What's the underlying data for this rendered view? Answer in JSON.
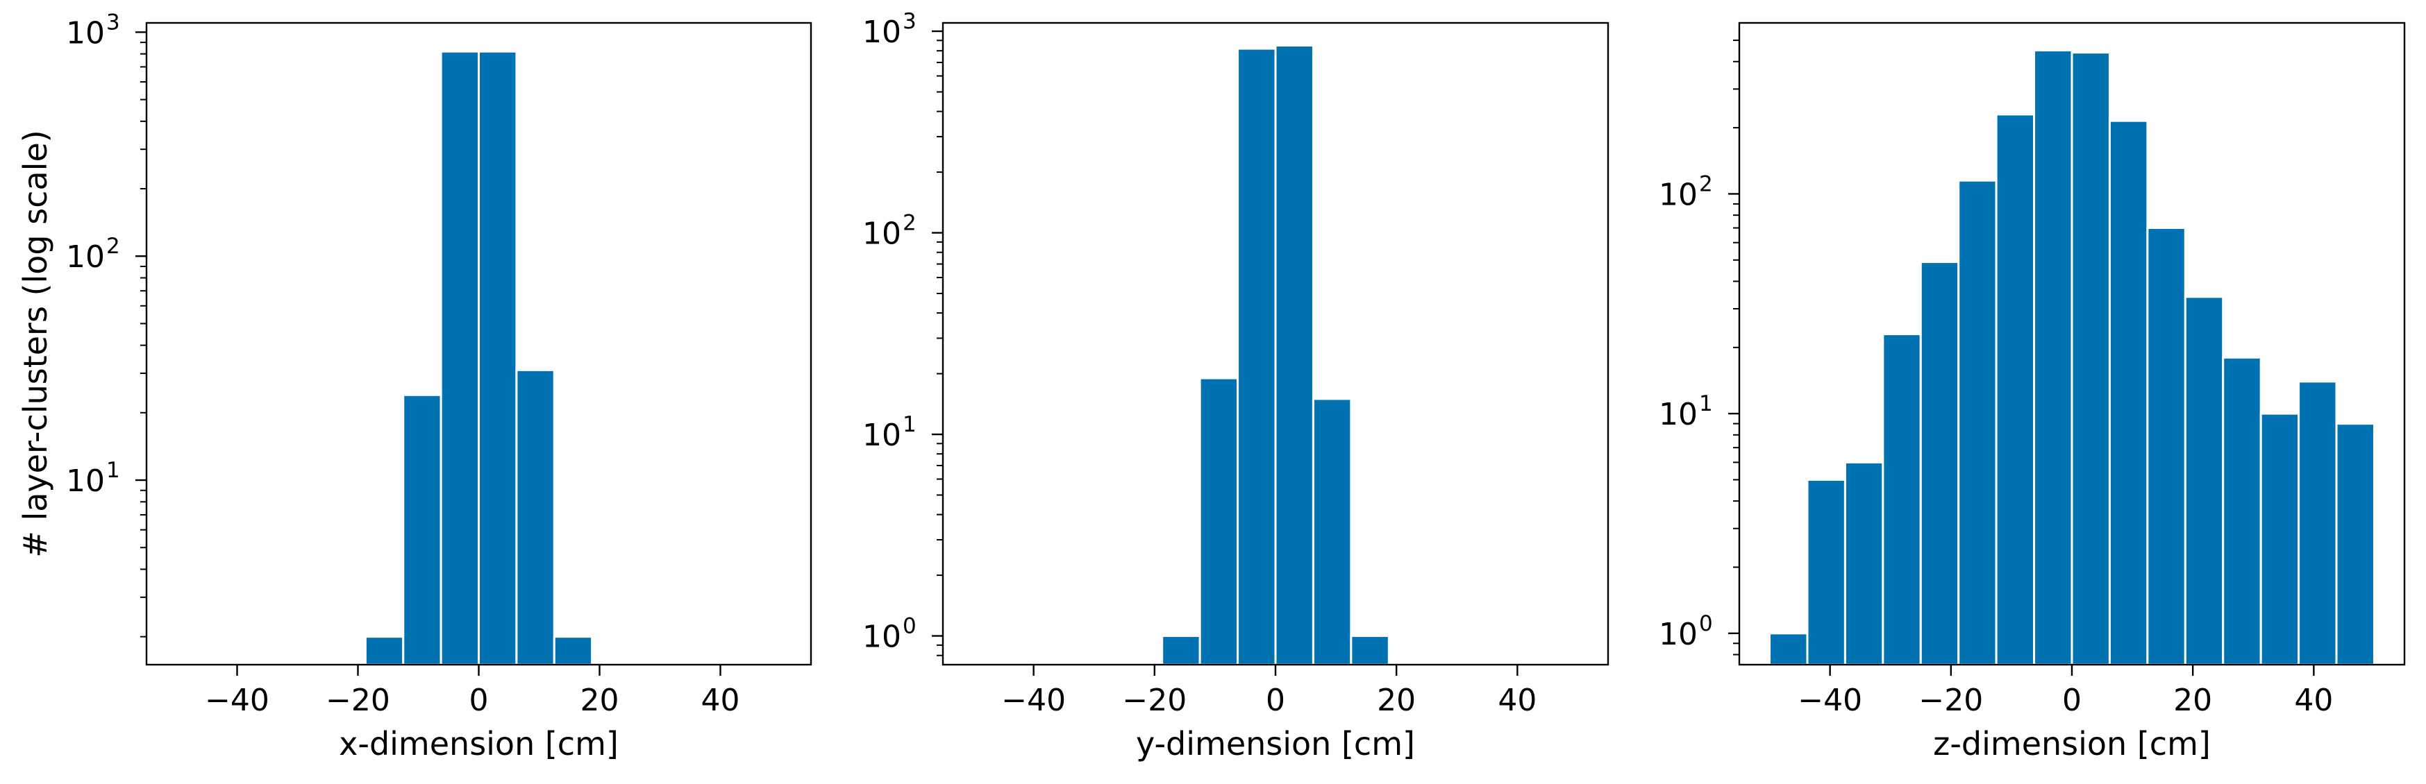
{
  "figure": {
    "ylabel": "# layer-clusters (log scale)",
    "bar_color": "#0072b2",
    "bar_edge_color": "#ffffff"
  },
  "chart_data": [
    {
      "type": "bar",
      "scale_y": "log",
      "xlabel": "x-dimension [cm]",
      "xlim": [
        -55,
        55
      ],
      "ylim": [
        1.5,
        1100
      ],
      "x_ticks": [
        -40,
        -20,
        0,
        20,
        40
      ],
      "x_tick_labels": [
        "−40",
        "−20",
        "0",
        "20",
        "40"
      ],
      "y_ticks": [
        10,
        100,
        1000
      ],
      "y_tick_labels": [
        {
          "base": "10",
          "exp": "1"
        },
        {
          "base": "10",
          "exp": "2"
        },
        {
          "base": "10",
          "exp": "3"
        }
      ],
      "bin_edges": [
        -50,
        -43.75,
        -37.5,
        -31.25,
        -25,
        -18.75,
        -12.5,
        -6.25,
        0,
        6.25,
        12.5,
        18.75,
        25,
        31.25,
        37.5,
        43.75,
        50
      ],
      "values": [
        0,
        0,
        0,
        0,
        0,
        2,
        24,
        820,
        820,
        31,
        2,
        0,
        0,
        0,
        0,
        0
      ]
    },
    {
      "type": "bar",
      "scale_y": "log",
      "xlabel": "y-dimension [cm]",
      "xlim": [
        -55,
        55
      ],
      "ylim": [
        0.72,
        1100
      ],
      "x_ticks": [
        -40,
        -20,
        0,
        20,
        40
      ],
      "x_tick_labels": [
        "−40",
        "−20",
        "0",
        "20",
        "40"
      ],
      "y_ticks": [
        1,
        10,
        100,
        1000
      ],
      "y_tick_labels": [
        {
          "base": "10",
          "exp": "0"
        },
        {
          "base": "10",
          "exp": "1"
        },
        {
          "base": "10",
          "exp": "2"
        },
        {
          "base": "10",
          "exp": "3"
        }
      ],
      "bin_edges": [
        -50,
        -43.75,
        -37.5,
        -31.25,
        -25,
        -18.75,
        -12.5,
        -6.25,
        0,
        6.25,
        12.5,
        18.75,
        25,
        31.25,
        37.5,
        43.75,
        50
      ],
      "values": [
        0,
        0,
        0,
        0,
        0,
        1,
        19,
        820,
        850,
        15,
        1,
        0,
        0,
        0,
        0,
        0
      ]
    },
    {
      "type": "bar",
      "scale_y": "log",
      "xlabel": "z-dimension [cm]",
      "xlim": [
        -55,
        55
      ],
      "ylim": [
        0.72,
        600
      ],
      "x_ticks": [
        -40,
        -20,
        0,
        20,
        40
      ],
      "x_tick_labels": [
        "−40",
        "−20",
        "0",
        "20",
        "40"
      ],
      "y_ticks": [
        1,
        10,
        100
      ],
      "y_tick_labels": [
        {
          "base": "10",
          "exp": "0"
        },
        {
          "base": "10",
          "exp": "1"
        },
        {
          "base": "10",
          "exp": "2"
        }
      ],
      "bin_edges": [
        -50,
        -43.75,
        -37.5,
        -31.25,
        -25,
        -18.75,
        -12.5,
        -6.25,
        0,
        6.25,
        12.5,
        18.75,
        25,
        31.25,
        37.5,
        43.75,
        50
      ],
      "values": [
        1,
        5,
        6,
        23,
        49,
        115,
        230,
        450,
        440,
        215,
        70,
        34,
        18,
        10,
        14,
        9
      ]
    }
  ]
}
